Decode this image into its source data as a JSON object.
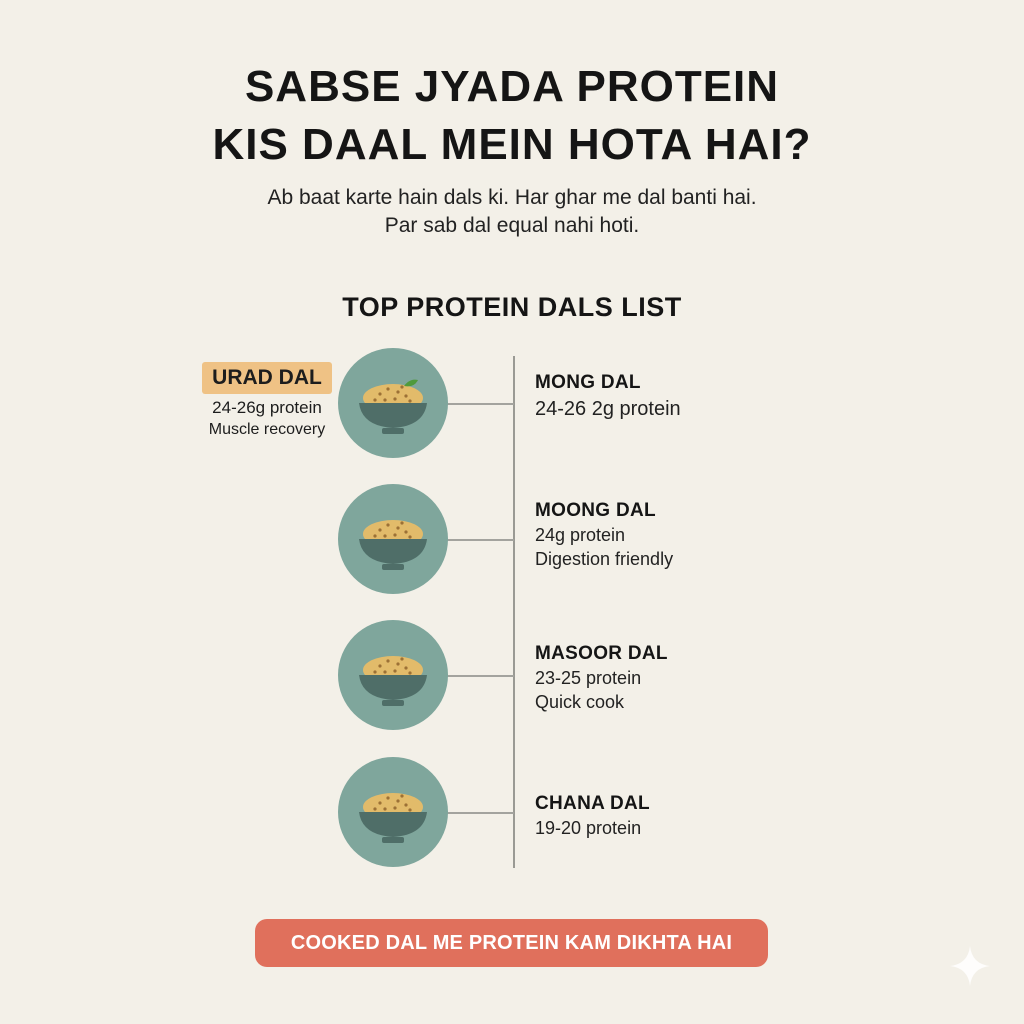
{
  "header": {
    "title_line1": "SABSE JYADA PROTEIN",
    "title_line2": "KIS DAAL MEIN HOTA HAI?",
    "subtitle_line1": "Ab baat karte hain dals ki. Har ghar me dal banti hai.",
    "subtitle_line2": "Par sab dal equal nahi hoti."
  },
  "list_heading": "TOP PROTEIN DALS LIST",
  "featured": {
    "tag": "URAD DAL",
    "protein": "24-26g protein",
    "benefit": "Muscle recovery"
  },
  "dals": [
    {
      "name": "MONG DAL",
      "line1": "24-26 2g protein",
      "line2": ""
    },
    {
      "name": "MOONG DAL",
      "line1": "24g protein",
      "line2": "Digestion friendly"
    },
    {
      "name": "MASOOR DAL",
      "line1": "23-25 protein",
      "line2": "Quick cook"
    },
    {
      "name": "CHANA DAL",
      "line1": "19-20 protein",
      "line2": ""
    }
  ],
  "footer": "COOKED DAL ME PROTEIN KAM DIKHTA HAI",
  "icons": {
    "bowl": "dal-bowl-icon",
    "leaf": "leaf-icon",
    "sparkle": "sparkle-icon"
  },
  "colors": {
    "background": "#f3f0e8",
    "circle": "#7fa69c",
    "bowl": "#4f6e68",
    "dal": "#e2bb6a",
    "tag": "#efc285",
    "footer": "#e0705c"
  }
}
